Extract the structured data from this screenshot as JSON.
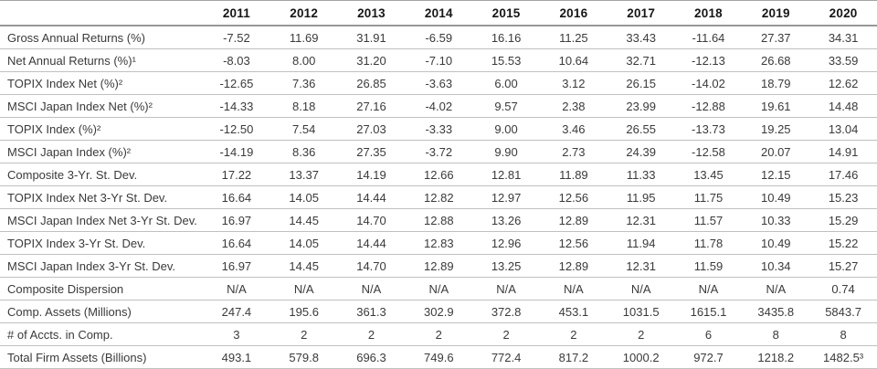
{
  "table": {
    "year_headers": [
      "2011",
      "2012",
      "2013",
      "2014",
      "2015",
      "2016",
      "2017",
      "2018",
      "2019",
      "2020"
    ],
    "rows": [
      {
        "label": "Gross Annual Returns (%)",
        "values": [
          "-7.52",
          "11.69",
          "31.91",
          "-6.59",
          "16.16",
          "11.25",
          "33.43",
          "-11.64",
          "27.37",
          "34.31"
        ]
      },
      {
        "label": "Net Annual Returns (%)¹",
        "values": [
          "-8.03",
          "8.00",
          "31.20",
          "-7.10",
          "15.53",
          "10.64",
          "32.71",
          "-12.13",
          "26.68",
          "33.59"
        ]
      },
      {
        "label": "TOPIX Index Net (%)²",
        "values": [
          "-12.65",
          "7.36",
          "26.85",
          "-3.63",
          "6.00",
          "3.12",
          "26.15",
          "-14.02",
          "18.79",
          "12.62"
        ]
      },
      {
        "label": "MSCI Japan Index Net (%)²",
        "values": [
          "-14.33",
          "8.18",
          "27.16",
          "-4.02",
          "9.57",
          "2.38",
          "23.99",
          "-12.88",
          "19.61",
          "14.48"
        ]
      },
      {
        "label": "TOPIX Index (%)²",
        "values": [
          "-12.50",
          "7.54",
          "27.03",
          "-3.33",
          "9.00",
          "3.46",
          "26.55",
          "-13.73",
          "19.25",
          "13.04"
        ]
      },
      {
        "label": "MSCI Japan Index (%)²",
        "values": [
          "-14.19",
          "8.36",
          "27.35",
          "-3.72",
          "9.90",
          "2.73",
          "24.39",
          "-12.58",
          "20.07",
          "14.91"
        ]
      },
      {
        "label": "Composite 3-Yr. St. Dev.",
        "values": [
          "17.22",
          "13.37",
          "14.19",
          "12.66",
          "12.81",
          "11.89",
          "11.33",
          "13.45",
          "12.15",
          "17.46"
        ]
      },
      {
        "label": "TOPIX Index Net 3-Yr St. Dev.",
        "values": [
          "16.64",
          "14.05",
          "14.44",
          "12.82",
          "12.97",
          "12.56",
          "11.95",
          "11.75",
          "10.49",
          "15.23"
        ]
      },
      {
        "label": "MSCI Japan Index Net 3-Yr St. Dev.",
        "values": [
          "16.97",
          "14.45",
          "14.70",
          "12.88",
          "13.26",
          "12.89",
          "12.31",
          "11.57",
          "10.33",
          "15.29"
        ]
      },
      {
        "label": "TOPIX Index 3-Yr St. Dev.",
        "values": [
          "16.64",
          "14.05",
          "14.44",
          "12.83",
          "12.96",
          "12.56",
          "11.94",
          "11.78",
          "10.49",
          "15.22"
        ]
      },
      {
        "label": "MSCI Japan Index 3-Yr St. Dev.",
        "values": [
          "16.97",
          "14.45",
          "14.70",
          "12.89",
          "13.25",
          "12.89",
          "12.31",
          "11.59",
          "10.34",
          "15.27"
        ]
      },
      {
        "label": "Composite Dispersion",
        "values": [
          "N/A",
          "N/A",
          "N/A",
          "N/A",
          "N/A",
          "N/A",
          "N/A",
          "N/A",
          "N/A",
          "0.74"
        ]
      },
      {
        "label": "Comp. Assets (Millions)",
        "values": [
          "247.4",
          "195.6",
          "361.3",
          "302.9",
          "372.8",
          "453.1",
          "1031.5",
          "1615.1",
          "3435.8",
          "5843.7"
        ]
      },
      {
        "label": "# of Accts. in Comp.",
        "values": [
          "3",
          "2",
          "2",
          "2",
          "2",
          "2",
          "2",
          "6",
          "8",
          "8"
        ]
      },
      {
        "label": "Total Firm Assets (Billions)",
        "values": [
          "493.1",
          "579.8",
          "696.3",
          "749.6",
          "772.4",
          "817.2",
          "1000.2",
          "972.7",
          "1218.2",
          "1482.5³"
        ]
      }
    ]
  },
  "colors": {
    "background": "#ffffff",
    "text": "#3a3a3a",
    "header_text": "#161616",
    "top_border": "#a3a3a3",
    "header_rule": "#979797",
    "row_rule": "#c0c0c0"
  }
}
